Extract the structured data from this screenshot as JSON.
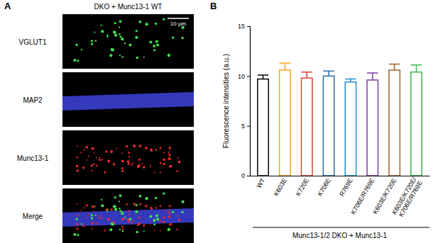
{
  "figure": {
    "panel_labels": [
      "A",
      "B"
    ]
  },
  "panel_a": {
    "title": "DKO + Munc13-1 WT",
    "channels": [
      "VGLUT1",
      "MAP2",
      "Munc13-1",
      "Merge"
    ],
    "scale_bar": "10 μm"
  },
  "chart_data": {
    "type": "bar",
    "ylabel": "Fluorescence intensities (a.u.)",
    "xlabel": "Munc13-1/2 DKO + Munc13-1",
    "categories": [
      "WT",
      "K603E",
      "K720E",
      "K706E",
      "R769E",
      "K706E/R769E",
      "K603E/K720E",
      "K603E/K720E/K706E/R769E"
    ],
    "values": [
      9.7,
      10.6,
      9.8,
      10.0,
      9.4,
      9.6,
      10.6,
      10.4
    ],
    "errors": [
      0.4,
      0.7,
      0.6,
      0.5,
      0.3,
      0.7,
      0.6,
      0.7
    ],
    "colors": [
      "#000000",
      "#f5a623",
      "#e0413a",
      "#2d6ca8",
      "#1f8fcf",
      "#7b3f9e",
      "#a0652a",
      "#3cb54a"
    ],
    "ylim": [
      0,
      15
    ],
    "yticks": [
      0,
      5,
      10,
      15
    ]
  }
}
